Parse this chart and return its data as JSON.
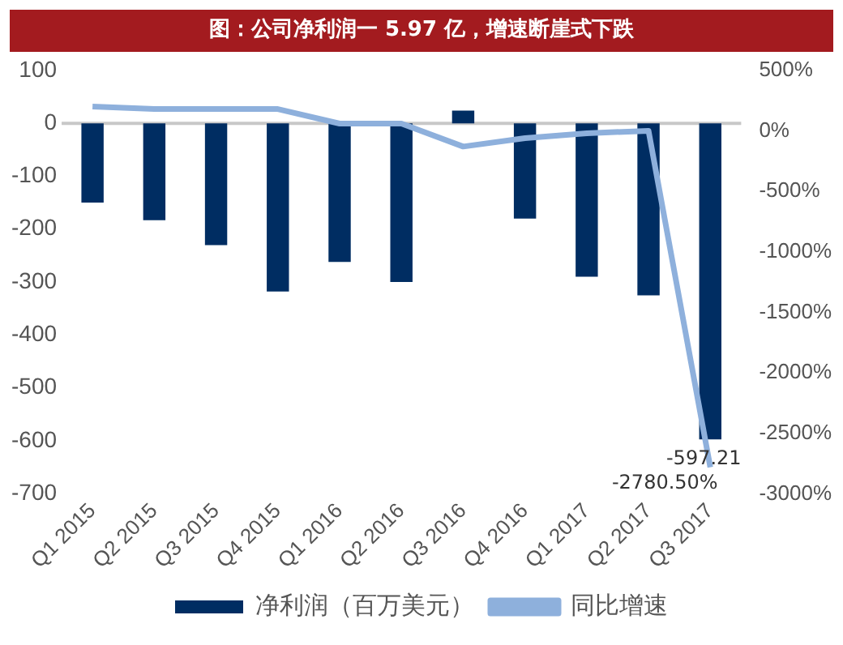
{
  "chart_data": {
    "type": "bar",
    "title": "图：公司净利润一 5.97 亿，增速断崖式下跌",
    "categories": [
      "Q1 2015",
      "Q2 2015",
      "Q3 2015",
      "Q4 2015",
      "Q1 2016",
      "Q2 2016",
      "Q3 2016",
      "Q4 2016",
      "Q1 2017",
      "Q2 2017",
      "Q3 2017"
    ],
    "series": [
      {
        "name": "净利润（百万美元）",
        "color": "#002d62",
        "values": [
          -150,
          -183,
          -230,
          -318,
          -262,
          -300,
          24,
          -180,
          -290,
          -325,
          -597.21
        ],
        "value_labels": [
          null,
          null,
          null,
          null,
          null,
          null,
          null,
          null,
          null,
          null,
          "-597.21"
        ]
      },
      {
        "name": "同比增速",
        "type": "line",
        "axis": "y2",
        "color": "#8eb0dc",
        "values": [
          200,
          180,
          180,
          180,
          60,
          60,
          -130,
          -60,
          -20,
          0,
          -2780.5
        ],
        "value_labels": [
          null,
          null,
          null,
          null,
          null,
          null,
          null,
          null,
          null,
          null,
          "-2780.50%"
        ]
      }
    ],
    "ylim": [
      -700,
      100
    ],
    "yticks": [
      100,
      0,
      -100,
      -200,
      -300,
      -400,
      -500,
      -600,
      -700
    ],
    "y2lim": [
      -3000,
      500
    ],
    "y2ticks": [
      {
        "value": 500,
        "label": "500%"
      },
      {
        "value": 0,
        "label": "0%"
      },
      {
        "value": -500,
        "label": "-500%"
      },
      {
        "value": -1000,
        "label": "-1000%"
      },
      {
        "value": -1500,
        "label": "-1500%"
      },
      {
        "value": -2000,
        "label": "-2000%"
      },
      {
        "value": -2500,
        "label": "-2500%"
      },
      {
        "value": -3000,
        "label": "-3000%"
      }
    ],
    "ref_lines": [
      {
        "axis": "y",
        "value": 0,
        "color": "#c8c8c8"
      }
    ],
    "grid": false,
    "legend": "bottom",
    "marker": "none"
  }
}
